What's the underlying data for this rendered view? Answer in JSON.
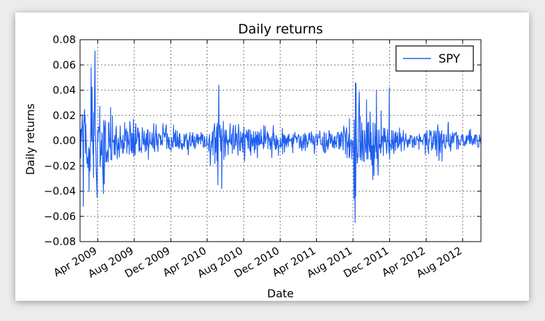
{
  "chart_data": {
    "type": "line",
    "title": "Daily returns",
    "xlabel": "Date",
    "ylabel": "Daily returns",
    "ylim": [
      -0.08,
      0.08
    ],
    "xlim": [
      "2009-02-01",
      "2012-10-01"
    ],
    "grid": true,
    "legend_position": "top-right",
    "yticks": [
      "0.08",
      "0.06",
      "0.04",
      "0.02",
      "0.00",
      "−0.02",
      "−0.04",
      "−0.06",
      "−0.08"
    ],
    "xticks": [
      "Apr 2009",
      "Aug 2009",
      "Dec 2009",
      "Apr 2010",
      "Aug 2010",
      "Dec 2010",
      "Apr 2011",
      "Aug 2011",
      "Dec 2011",
      "Apr 2012",
      "Aug 2012"
    ],
    "series": [
      {
        "name": "SPY",
        "color": "#1f5ff0",
        "envelope": {
          "dates": [
            "2009-02-01",
            "2009-03-01",
            "2009-04-01",
            "2009-05-01",
            "2009-06-01",
            "2009-07-01",
            "2009-08-01",
            "2009-09-01",
            "2009-10-01",
            "2009-11-01",
            "2009-12-01",
            "2010-01-01",
            "2010-02-01",
            "2010-03-01",
            "2010-04-01",
            "2010-05-01",
            "2010-06-01",
            "2010-07-01",
            "2010-08-01",
            "2010-09-01",
            "2010-10-01",
            "2010-11-01",
            "2010-12-01",
            "2011-01-01",
            "2011-02-01",
            "2011-03-01",
            "2011-04-01",
            "2011-05-01",
            "2011-06-01",
            "2011-07-01",
            "2011-08-01",
            "2011-09-01",
            "2011-10-01",
            "2011-11-01",
            "2011-12-01",
            "2012-01-01",
            "2012-02-01",
            "2012-03-01",
            "2012-04-01",
            "2012-05-01",
            "2012-06-01",
            "2012-07-01",
            "2012-08-01",
            "2012-09-01",
            "2012-10-01"
          ],
          "amplitude": [
            0.045,
            0.05,
            0.04,
            0.035,
            0.025,
            0.02,
            0.02,
            0.018,
            0.016,
            0.016,
            0.013,
            0.012,
            0.013,
            0.011,
            0.014,
            0.03,
            0.028,
            0.024,
            0.02,
            0.016,
            0.013,
            0.014,
            0.012,
            0.01,
            0.011,
            0.012,
            0.01,
            0.01,
            0.011,
            0.014,
            0.045,
            0.038,
            0.032,
            0.026,
            0.018,
            0.012,
            0.01,
            0.01,
            0.012,
            0.016,
            0.018,
            0.014,
            0.01,
            0.01,
            0.01
          ]
        },
        "highlights": [
          {
            "date": "2009-02-12",
            "value": -0.052
          },
          {
            "date": "2009-03-10",
            "value": 0.058
          },
          {
            "date": "2009-03-23",
            "value": 0.071
          },
          {
            "date": "2009-03-30",
            "value": -0.045
          },
          {
            "date": "2009-04-20",
            "value": -0.042
          },
          {
            "date": "2010-05-07",
            "value": -0.035
          },
          {
            "date": "2010-05-10",
            "value": 0.044
          },
          {
            "date": "2010-05-20",
            "value": -0.038
          },
          {
            "date": "2011-08-04",
            "value": -0.046
          },
          {
            "date": "2011-08-08",
            "value": -0.065
          },
          {
            "date": "2011-08-09",
            "value": 0.046
          },
          {
            "date": "2011-08-10",
            "value": -0.044
          },
          {
            "date": "2011-08-11",
            "value": 0.045
          },
          {
            "date": "2011-10-18",
            "value": 0.04
          },
          {
            "date": "2011-11-30",
            "value": 0.042
          }
        ]
      }
    ]
  }
}
